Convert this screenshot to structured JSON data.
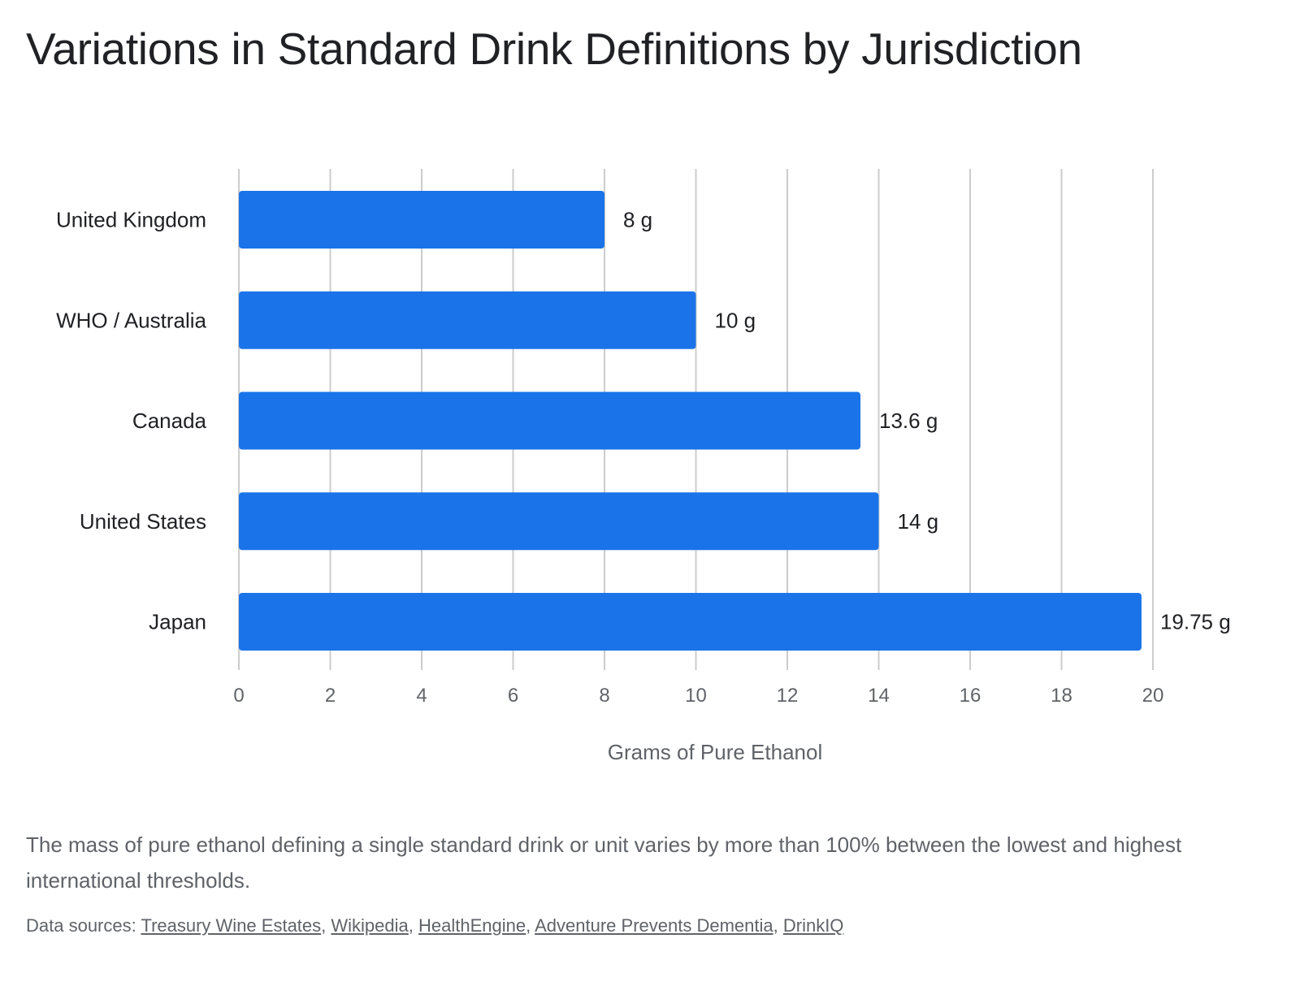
{
  "title": "Variations in Standard Drink Definitions by Jurisdiction",
  "caption": "The mass of pure ethanol defining a single standard drink or unit varies by more than 100% between the lowest and highest international thresholds.",
  "sources": {
    "prefix": "Data sources: ",
    "separator": ", ",
    "links": [
      "Treasury Wine Estates",
      "Wikipedia",
      "HealthEngine",
      "Adventure Prevents Dementia",
      "DrinkIQ"
    ]
  },
  "colors": {
    "bar": "#1a73e8",
    "grid": "#cccccc",
    "text": "#202124",
    "muted": "#5f6368"
  },
  "chart_data": {
    "type": "bar",
    "orientation": "horizontal",
    "categories": [
      "United Kingdom",
      "WHO / Australia",
      "Canada",
      "United States",
      "Japan"
    ],
    "values": [
      8,
      10,
      13.6,
      14,
      19.75
    ],
    "data_labels": [
      "8 g",
      "10 g",
      "13.6 g",
      "14 g",
      "19.75 g"
    ],
    "xlabel": "Grams of Pure Ethanol",
    "ylabel": "",
    "xlim": [
      0,
      20
    ],
    "x_ticks": [
      0,
      2,
      4,
      6,
      8,
      10,
      12,
      14,
      16,
      18,
      20
    ],
    "grid": true,
    "legend": "none"
  }
}
